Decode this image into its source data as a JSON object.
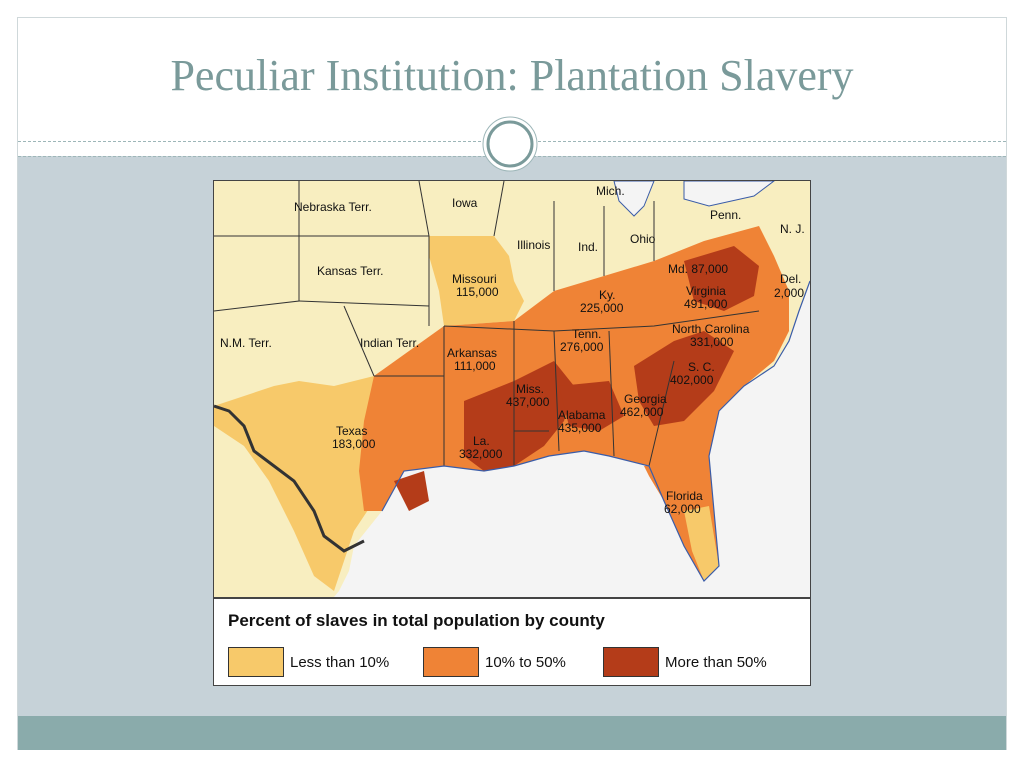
{
  "slide": {
    "title": "Peculiar Institution: Plantation Slavery"
  },
  "map": {
    "colors": {
      "less_than_10": "#f7c96a",
      "ten_to_50": "#ef8336",
      "more_than_50": "#b43c19",
      "unshaded": "#f8eec0",
      "water": "#f4f4f4",
      "river": "#3a5ca8"
    },
    "labels": {
      "nebraska": "Nebraska Terr.",
      "iowa": "Iowa",
      "mich": "Mich.",
      "penn": "Penn.",
      "nj": "N. J.",
      "illinois": "Illinois",
      "ind": "Ind.",
      "ohio": "Ohio",
      "kansas": "Kansas Terr.",
      "missouri_name": "Missouri",
      "missouri_count": "115,000",
      "md": "Md. 87,000",
      "del_name": "Del.",
      "del_count": "2,000",
      "ky_name": "Ky.",
      "ky_count": "225,000",
      "virginia_name": "Virginia",
      "virginia_count": "491,000",
      "nm": "N.M. Terr.",
      "indian": "Indian Terr.",
      "tenn_name": "Tenn.",
      "tenn_count": "276,000",
      "nc_name": "North Carolina",
      "nc_count": "331,000",
      "arkansas_name": "Arkansas",
      "arkansas_count": "111,000",
      "sc_name": "S. C.",
      "sc_count": "402,000",
      "miss_name": "Miss.",
      "miss_count": "437,000",
      "georgia_name": "Georgia",
      "georgia_count": "462,000",
      "texas_name": "Texas",
      "texas_count": "183,000",
      "alabama_name": "Alabama",
      "alabama_count": "435,000",
      "la_name": "La.",
      "la_count": "332,000",
      "florida_name": "Florida",
      "florida_count": "62,000"
    },
    "legend": {
      "title": "Percent of slaves in total population by county",
      "items": [
        {
          "label": "Less than 10%",
          "color": "#f7c96a"
        },
        {
          "label": "10% to 50%",
          "color": "#ef8336"
        },
        {
          "label": "More than 50%",
          "color": "#b43c19"
        }
      ]
    }
  }
}
